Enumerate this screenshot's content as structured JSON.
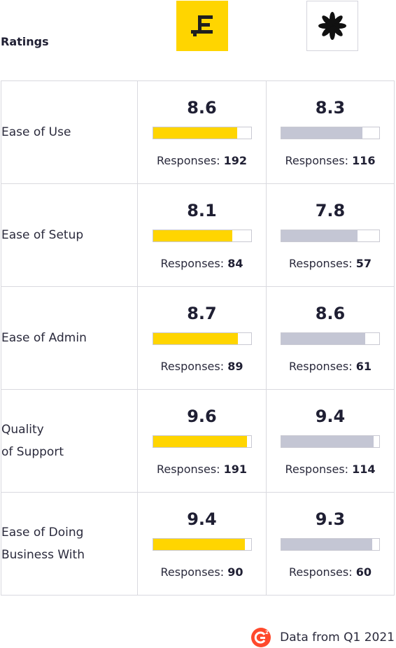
{
  "header": {
    "title": "Ratings",
    "products": [
      {
        "logo_icon": "lettered-E-logo-icon",
        "brand_color": "#ffd500"
      },
      {
        "logo_icon": "black-asterisk-logo-icon",
        "brand_color": "#ffffff"
      }
    ]
  },
  "chart_data": {
    "type": "bar",
    "title": "Ratings",
    "scale_max": 10,
    "categories": [
      "Ease of Use",
      "Ease of Setup",
      "Ease of Admin",
      "Quality\nof Support",
      "Ease of Doing\nBusiness With"
    ],
    "series": [
      {
        "color": "#ffd500",
        "values": [
          8.6,
          8.1,
          8.7,
          9.6,
          9.4
        ],
        "responses": [
          192,
          84,
          89,
          191,
          90
        ]
      },
      {
        "color": "#c4c6d4",
        "values": [
          8.3,
          7.8,
          8.6,
          9.4,
          9.3
        ],
        "responses": [
          116,
          57,
          61,
          114,
          60
        ]
      }
    ]
  },
  "labels": {
    "responses_prefix": "Responses: "
  },
  "footer": {
    "source_text": "Data from Q1 2021",
    "logo_icon": "g2-logo-icon",
    "logo_color": "#ff492c"
  }
}
